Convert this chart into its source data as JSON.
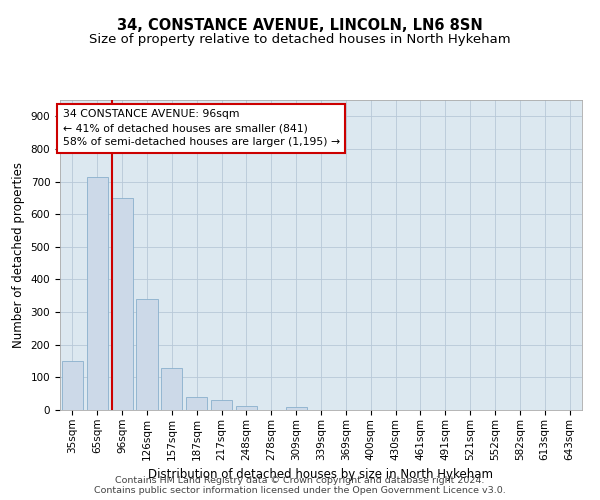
{
  "title": "34, CONSTANCE AVENUE, LINCOLN, LN6 8SN",
  "subtitle": "Size of property relative to detached houses in North Hykeham",
  "xlabel": "Distribution of detached houses by size in North Hykeham",
  "ylabel": "Number of detached properties",
  "categories": [
    "35sqm",
    "65sqm",
    "96sqm",
    "126sqm",
    "157sqm",
    "187sqm",
    "217sqm",
    "248sqm",
    "278sqm",
    "309sqm",
    "339sqm",
    "369sqm",
    "400sqm",
    "430sqm",
    "461sqm",
    "491sqm",
    "521sqm",
    "552sqm",
    "582sqm",
    "613sqm",
    "643sqm"
  ],
  "values": [
    150,
    715,
    650,
    340,
    130,
    40,
    30,
    12,
    0,
    10,
    0,
    0,
    0,
    0,
    0,
    0,
    0,
    0,
    0,
    0,
    0
  ],
  "bar_color": "#ccd9e8",
  "bar_edge_color": "#8ab0cc",
  "vline_color": "#cc0000",
  "vline_x_index": 2,
  "ylim": [
    0,
    950
  ],
  "yticks": [
    0,
    100,
    200,
    300,
    400,
    500,
    600,
    700,
    800,
    900
  ],
  "annotation_line1": "34 CONSTANCE AVENUE: 96sqm",
  "annotation_line2": "← 41% of detached houses are smaller (841)",
  "annotation_line3": "58% of semi-detached houses are larger (1,195) →",
  "annotation_box_facecolor": "#ffffff",
  "annotation_box_edgecolor": "#cc0000",
  "footer_line1": "Contains HM Land Registry data © Crown copyright and database right 2024.",
  "footer_line2": "Contains public sector information licensed under the Open Government Licence v3.0.",
  "background_color": "#ffffff",
  "axes_facecolor": "#dce8f0",
  "grid_color": "#b8c8d8",
  "title_fontsize": 10.5,
  "subtitle_fontsize": 9.5,
  "ylabel_fontsize": 8.5,
  "xlabel_fontsize": 8.5,
  "tick_fontsize": 7.5,
  "annotation_fontsize": 7.8,
  "footer_fontsize": 6.8
}
